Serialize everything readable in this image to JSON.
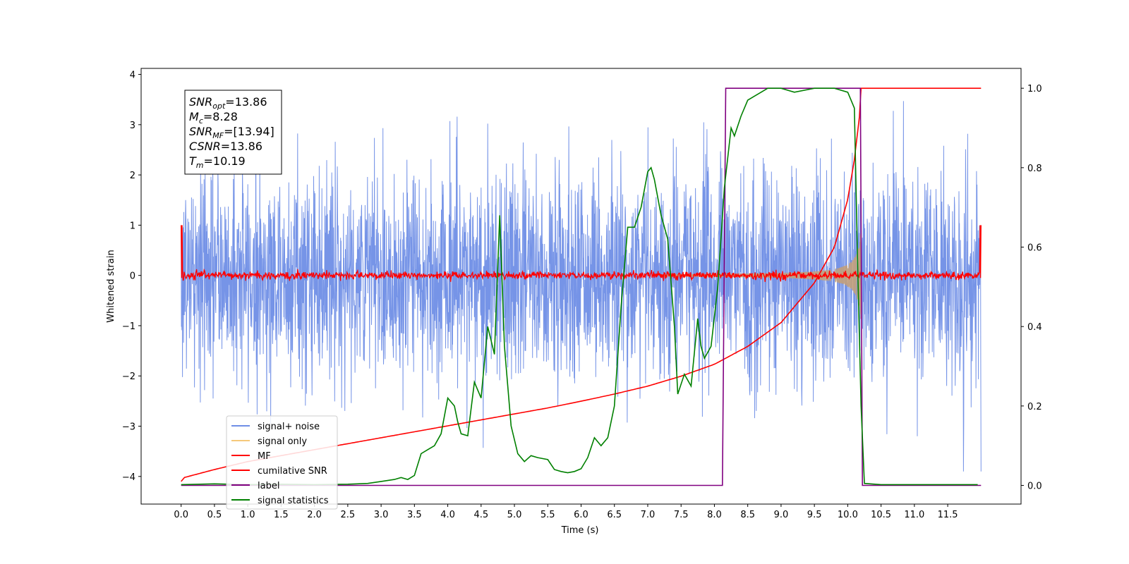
{
  "chart_data": {
    "type": "line",
    "xlabel": "Time (s)",
    "ylabel": "Whitened strain",
    "x_range": [
      -0.6,
      12.6
    ],
    "y_range": [
      -4.55,
      4.12
    ],
    "y2_range": [
      -0.047,
      1.05
    ],
    "x_ticks": [
      "0.0",
      "0.5",
      "1.0",
      "1.5",
      "2.0",
      "2.5",
      "3.0",
      "3.5",
      "4.0",
      "4.5",
      "5.0",
      "5.5",
      "6.0",
      "6.5",
      "7.0",
      "7.5",
      "8.0",
      "8.5",
      "9.0",
      "9.5",
      "10.0",
      "10.5",
      "11.0",
      "11.5"
    ],
    "y_ticks": [
      "−4",
      "−3",
      "−2",
      "−1",
      "0",
      "1",
      "2",
      "3",
      "4"
    ],
    "y2_ticks": [
      "0.0",
      "0.2",
      "0.4",
      "0.6",
      "0.8",
      "1.0"
    ],
    "info_box": {
      "lines": [
        {
          "sym": "SNR",
          "sub": "opt",
          "val": "=13.86"
        },
        {
          "sym": "M",
          "sub": "c",
          "val": "=8.28"
        },
        {
          "sym": "SNR",
          "sub": "MF",
          "val": "=[13.94]"
        },
        {
          "sym": "CSNR",
          "sub": "",
          "val": "=13.86"
        },
        {
          "sym": "T",
          "sub": "m",
          "val": "=10.19"
        }
      ]
    },
    "legend": {
      "placement": "lower-left",
      "entries": [
        {
          "label": "signal+ noise",
          "color": "#6f8ee6"
        },
        {
          "label": "signal only",
          "color": "#f5c97a"
        },
        {
          "label": "MF",
          "color": "#ff0000"
        },
        {
          "label": "cumilative SNR",
          "color": "#ff0000"
        },
        {
          "label": "label",
          "color": "#800080"
        },
        {
          "label": "signal statistics",
          "color": "#008000"
        }
      ]
    },
    "series": [
      {
        "name": "signal+ noise",
        "axis": "left",
        "color": "#6f8ee6",
        "t_start": 0.0,
        "t_end": 12.0,
        "mean": 0.0,
        "envelope": 1.1,
        "peak_range": [
          -3.9,
          3.75
        ]
      },
      {
        "name": "signal only",
        "axis": "left",
        "color": "#c4a07a",
        "t_start": 7.2,
        "t_end": 10.2,
        "amplitude_start": 0.02,
        "amplitude_end": 0.95
      },
      {
        "name": "MF",
        "axis": "left",
        "color": "#ff0000",
        "t_start": 0.0,
        "t_end": 12.0,
        "mean": 0.0,
        "envelope": 0.08,
        "edge_value": 1.0
      },
      {
        "name": "cumilative SNR",
        "axis": "right",
        "color": "#ff0000",
        "x": [
          0.0,
          0.05,
          0.5,
          1.0,
          1.5,
          2.0,
          2.5,
          3.0,
          3.5,
          4.0,
          4.5,
          5.0,
          5.5,
          6.0,
          6.5,
          7.0,
          7.5,
          8.0,
          8.5,
          9.0,
          9.5,
          9.8,
          10.0,
          10.1,
          10.19,
          10.2,
          12.0
        ],
        "y": [
          0.01,
          0.02,
          0.04,
          0.06,
          0.075,
          0.09,
          0.105,
          0.12,
          0.135,
          0.15,
          0.165,
          0.18,
          0.195,
          0.212,
          0.23,
          0.25,
          0.275,
          0.305,
          0.35,
          0.41,
          0.51,
          0.6,
          0.72,
          0.82,
          0.95,
          1.0,
          1.0
        ]
      },
      {
        "name": "label",
        "axis": "right",
        "color": "#800080",
        "x": [
          0.0,
          8.12,
          8.17,
          10.19,
          10.22,
          12.0
        ],
        "y": [
          0.0,
          0.0,
          1.0,
          1.0,
          0.0,
          0.0
        ]
      },
      {
        "name": "signal statistics",
        "axis": "right",
        "color": "#008000",
        "x": [
          0.0,
          0.5,
          1.0,
          1.5,
          2.0,
          2.5,
          2.8,
          3.0,
          3.2,
          3.3,
          3.4,
          3.5,
          3.6,
          3.7,
          3.8,
          3.9,
          4.0,
          4.1,
          4.15,
          4.2,
          4.3,
          4.4,
          4.5,
          4.6,
          4.7,
          4.78,
          4.85,
          4.95,
          5.05,
          5.15,
          5.25,
          5.35,
          5.5,
          5.6,
          5.7,
          5.8,
          5.9,
          6.0,
          6.1,
          6.2,
          6.3,
          6.4,
          6.5,
          6.6,
          6.7,
          6.8,
          6.9,
          7.0,
          7.05,
          7.1,
          7.2,
          7.3,
          7.4,
          7.45,
          7.55,
          7.65,
          7.75,
          7.8,
          7.85,
          7.95,
          8.05,
          8.15,
          8.25,
          8.3,
          8.4,
          8.5,
          8.6,
          8.7,
          8.8,
          9.0,
          9.2,
          9.5,
          9.8,
          10.0,
          10.1,
          10.15,
          10.2,
          10.25,
          10.5,
          11.0,
          11.5,
          11.95
        ],
        "y": [
          0.002,
          0.004,
          0.002,
          0.003,
          0.002,
          0.003,
          0.005,
          0.01,
          0.015,
          0.02,
          0.015,
          0.025,
          0.08,
          0.09,
          0.1,
          0.13,
          0.22,
          0.2,
          0.16,
          0.13,
          0.125,
          0.26,
          0.22,
          0.4,
          0.33,
          0.68,
          0.35,
          0.15,
          0.08,
          0.06,
          0.075,
          0.07,
          0.065,
          0.04,
          0.035,
          0.032,
          0.035,
          0.042,
          0.07,
          0.12,
          0.1,
          0.12,
          0.2,
          0.45,
          0.65,
          0.65,
          0.7,
          0.79,
          0.8,
          0.77,
          0.68,
          0.62,
          0.4,
          0.23,
          0.28,
          0.25,
          0.42,
          0.35,
          0.32,
          0.35,
          0.5,
          0.75,
          0.9,
          0.88,
          0.93,
          0.97,
          0.98,
          0.99,
          1.0,
          1.0,
          0.99,
          1.0,
          1.0,
          0.99,
          0.95,
          0.55,
          0.2,
          0.005,
          0.002,
          0.002,
          0.002,
          0.002
        ]
      }
    ]
  }
}
